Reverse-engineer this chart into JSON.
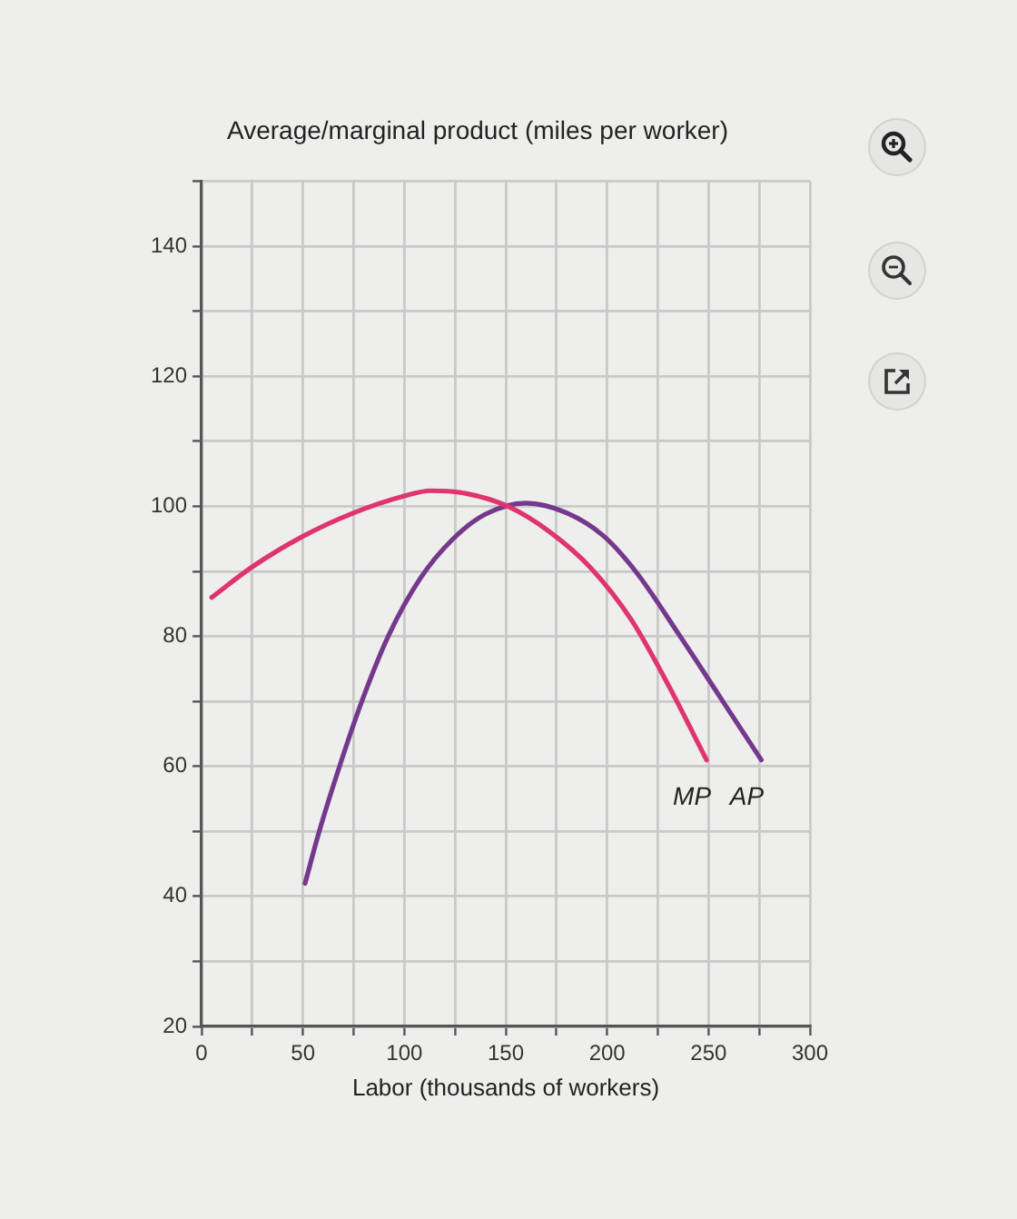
{
  "chart_data": {
    "type": "line",
    "ylabel": "Average/marginal product (miles per worker)",
    "xlabel": "Labor (thousands of workers)",
    "series": [
      {
        "name": "MP",
        "color": "#e0346e",
        "x": [
          5,
          25,
          50,
          75,
          100,
          113,
          130,
          151,
          172,
          192,
          212,
          231,
          249
        ],
        "values": [
          86,
          90.7,
          95.4,
          99,
          101.6,
          102.4,
          102,
          100,
          96,
          90.5,
          82.5,
          72,
          61
        ]
      },
      {
        "name": "AP",
        "color": "#74388c",
        "x": [
          51,
          58,
          68,
          79,
          92,
          108,
          124,
          140,
          160,
          180,
          198,
          214,
          236,
          256,
          276
        ],
        "values": [
          42,
          50,
          60,
          70,
          80,
          89,
          95,
          98.8,
          100.5,
          99,
          95.5,
          90,
          80,
          70.5,
          61
        ]
      }
    ],
    "xlim": [
      0,
      300
    ],
    "ylim": [
      20,
      150
    ],
    "xticks": [
      0,
      {
        "value": 25,
        "label": null
      },
      50,
      {
        "value": 75,
        "label": null
      },
      100,
      {
        "value": 125,
        "label": null
      },
      150,
      {
        "value": 175,
        "label": null
      },
      200,
      {
        "value": 225,
        "label": null
      },
      250,
      {
        "value": 275,
        "label": null
      },
      300
    ],
    "yticks": [
      20,
      {
        "value": 30,
        "label": null
      },
      40,
      {
        "value": 50,
        "label": null
      },
      60,
      {
        "value": 70,
        "label": null
      },
      80,
      {
        "value": 90,
        "label": null
      },
      100,
      {
        "value": 110,
        "label": null
      },
      120,
      {
        "value": 130,
        "label": null
      },
      140,
      {
        "value": 150,
        "label": null
      }
    ],
    "grid": true,
    "marker": "none",
    "line_style": "solid"
  }
}
